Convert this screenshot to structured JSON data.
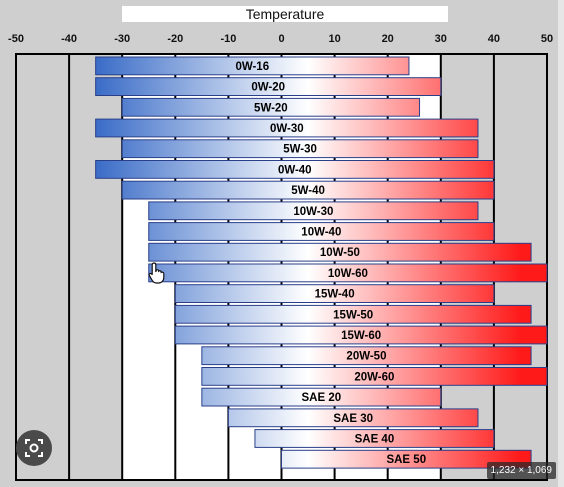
{
  "chart_data": {
    "type": "bar",
    "title": "Temperature",
    "xlim": [
      -50,
      50
    ],
    "xticks": [
      -50,
      -40,
      -30,
      -20,
      -10,
      0,
      10,
      20,
      30,
      40,
      50
    ],
    "grid": "vertical lines at every 10 degrees",
    "gradient_colors": {
      "cold": "#3a6cc7",
      "mid": "#ffffff",
      "hot": "#ff1a1a"
    },
    "bars": [
      {
        "label": "0W-16",
        "min": -35,
        "max": 24
      },
      {
        "label": "0W-20",
        "min": -35,
        "max": 30
      },
      {
        "label": "5W-20",
        "min": -30,
        "max": 26
      },
      {
        "label": "0W-30",
        "min": -35,
        "max": 37
      },
      {
        "label": "5W-30",
        "min": -30,
        "max": 37
      },
      {
        "label": "0W-40",
        "min": -35,
        "max": 40
      },
      {
        "label": "5W-40",
        "min": -30,
        "max": 40
      },
      {
        "label": "10W-30",
        "min": -25,
        "max": 37
      },
      {
        "label": "10W-40",
        "min": -25,
        "max": 40
      },
      {
        "label": "10W-50",
        "min": -25,
        "max": 47
      },
      {
        "label": "10W-60",
        "min": -25,
        "max": 50
      },
      {
        "label": "15W-40",
        "min": -20,
        "max": 40
      },
      {
        "label": "15W-50",
        "min": -20,
        "max": 47
      },
      {
        "label": "15W-60",
        "min": -20,
        "max": 50
      },
      {
        "label": "20W-50",
        "min": -15,
        "max": 47
      },
      {
        "label": "20W-60",
        "min": -15,
        "max": 50
      },
      {
        "label": "SAE 20",
        "min": -15,
        "max": 30
      },
      {
        "label": "SAE 30",
        "min": -10,
        "max": 37
      },
      {
        "label": "SAE 40",
        "min": -5,
        "max": 40
      },
      {
        "label": "SAE 50",
        "min": 0,
        "max": 47
      }
    ]
  },
  "overlay": {
    "image_size": "1,232 × 1,069",
    "visual_search_icon": "lens-icon",
    "cursor_icon": "hand-pointer-icon"
  }
}
